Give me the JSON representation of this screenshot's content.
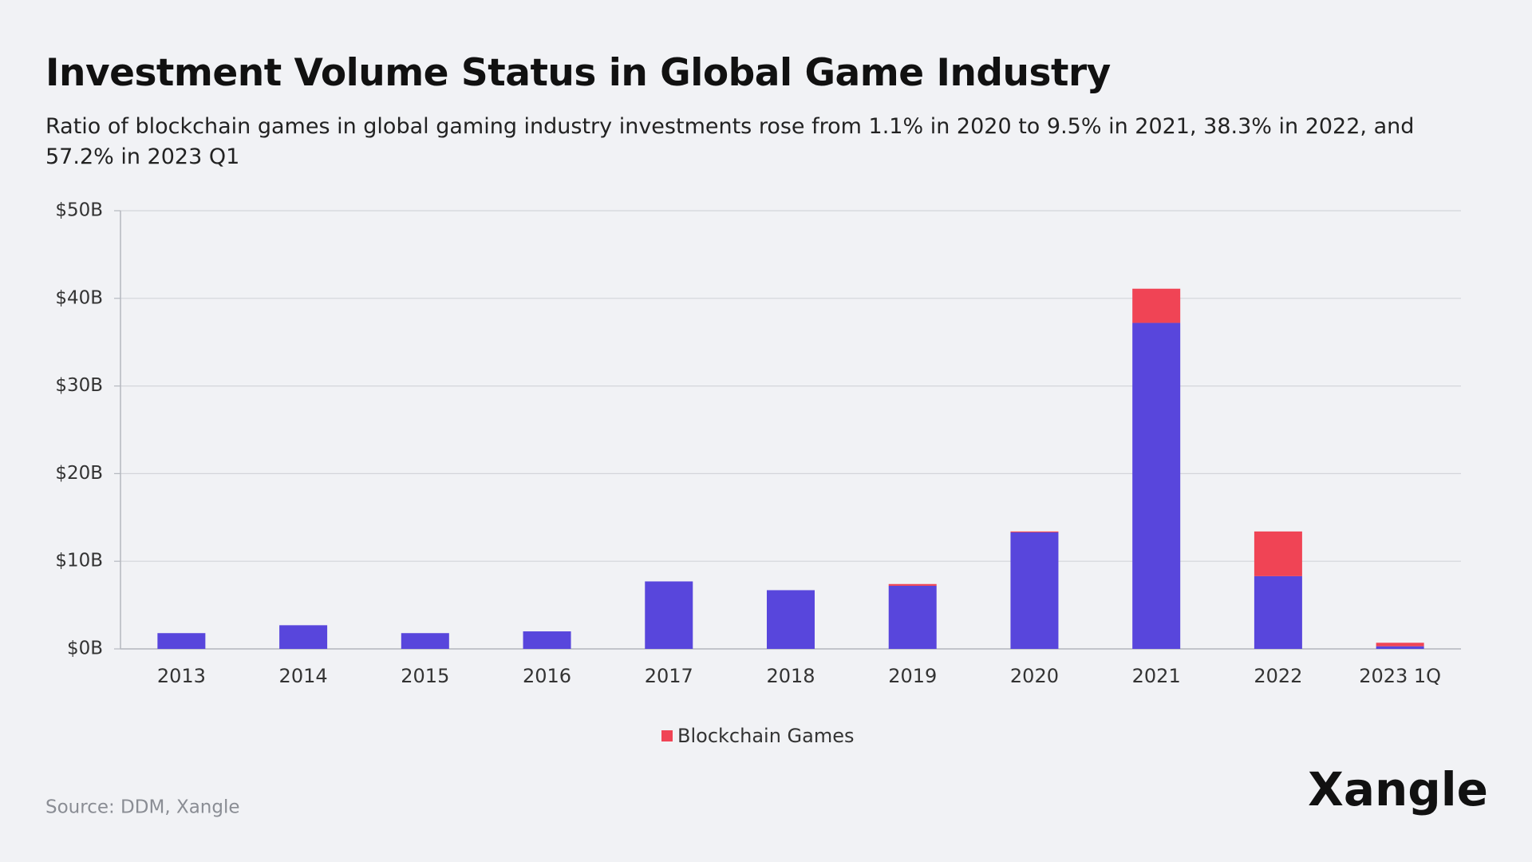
{
  "chart_data": {
    "type": "stacked_bar",
    "title": "Investment Volume Status in Global Game Industry",
    "subtitle": "Ratio of blockchain games in global gaming industry investments rose from 1.1% in 2020 to 9.5% in 2021, 38.3% in 2022, and 57.2% in 2023 Q1",
    "source": "Source: DDM, Xangle",
    "logo": "Xangle",
    "categories": [
      "2013",
      "2014",
      "2015",
      "2016",
      "2017",
      "2018",
      "2019",
      "2020",
      "2021",
      "2022",
      "2023 1Q"
    ],
    "series": [
      {
        "color": "#5846dc",
        "values": [
          1.8,
          2.7,
          1.8,
          2.0,
          7.7,
          6.7,
          7.2,
          13.3,
          37.2,
          8.3,
          0.3
        ]
      },
      {
        "name": "Blockchain Games",
        "color": "#f04455",
        "values": [
          0,
          0,
          0,
          0,
          0,
          0,
          0.2,
          0.1,
          3.9,
          5.1,
          0.4
        ]
      }
    ],
    "ylim": [
      0,
      50
    ],
    "yticks": [
      {
        "value": 0,
        "label": "$0B"
      },
      {
        "value": 10,
        "label": "$10B"
      },
      {
        "value": 20,
        "label": "$20B"
      },
      {
        "value": 30,
        "label": "$30B"
      },
      {
        "value": 40,
        "label": "$40B"
      },
      {
        "value": 50,
        "label": "$50B"
      }
    ],
    "grid": true,
    "legend": "bottom"
  }
}
